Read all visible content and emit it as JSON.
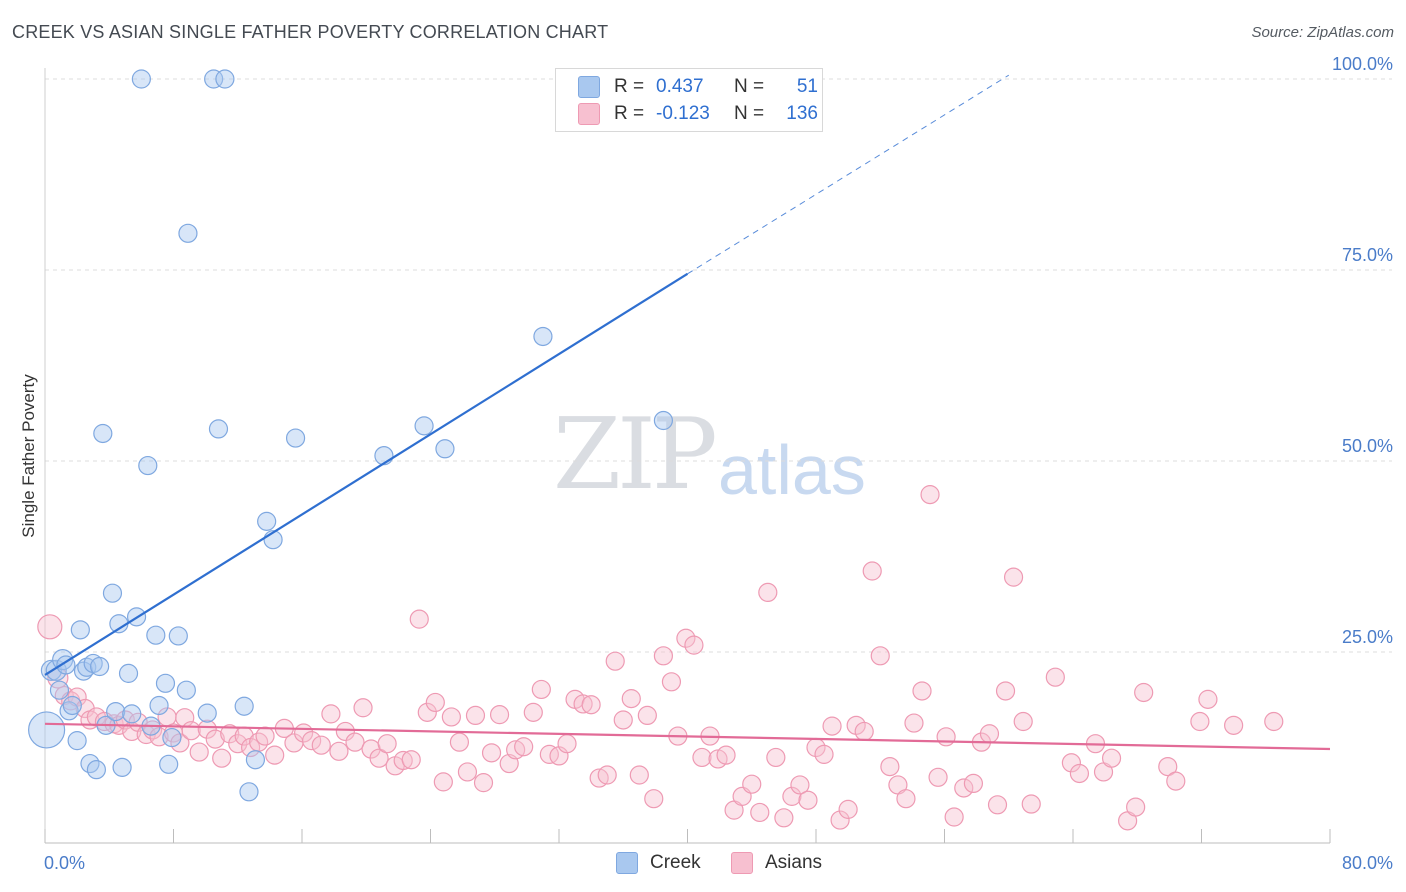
{
  "header": {
    "title": "CREEK VS ASIAN SINGLE FATHER POVERTY CORRELATION CHART",
    "source": "Source: ZipAtlas.com"
  },
  "watermark": {
    "part1": "ZIP",
    "part2": "atlas"
  },
  "legend": {
    "rows": [
      {
        "r_label": "R =",
        "r_value": "0.437",
        "n_label": "N =",
        "n_value": "51",
        "color": "#a9c8ef",
        "border": "#7fa8e0"
      },
      {
        "r_label": "R =",
        "r_value": "-0.123",
        "n_label": "N =",
        "n_value": "136",
        "color": "#f7c0d0",
        "border": "#ee9ab3"
      }
    ]
  },
  "bottom_legend": {
    "items": [
      {
        "label": "Creek",
        "color": "#a9c8ef",
        "border": "#7fa8e0"
      },
      {
        "label": "Asians",
        "color": "#f7c0d0",
        "border": "#ee9ab3"
      }
    ]
  },
  "chart_data": {
    "type": "scatter",
    "title": "CREEK VS ASIAN SINGLE FATHER POVERTY CORRELATION CHART",
    "xlabel": "",
    "ylabel": "Single Father Poverty",
    "xlim": [
      0,
      80
    ],
    "ylim": [
      0,
      100
    ],
    "x_tick_labels": {
      "left": "0.0%",
      "right": "80.0%"
    },
    "y_ticks": [
      25,
      50,
      75,
      100
    ],
    "y_tick_labels": [
      "25.0%",
      "50.0%",
      "75.0%",
      "100.0%"
    ],
    "series": [
      {
        "name": "Creek",
        "color": "#7fa8e0",
        "fill": "#a9c8ef",
        "line_color": "#2f6fd0",
        "trend": {
          "x0": 0,
          "y0": 22,
          "x1": 40,
          "y1": 74.5,
          "dash_x1": 60,
          "dash_y1": 100.5
        },
        "points": [
          [
            0.1,
            14.8,
            18
          ],
          [
            0.4,
            22.6,
            10
          ],
          [
            0.7,
            22.6,
            10
          ],
          [
            0.9,
            20.0,
            9
          ],
          [
            1.1,
            24.0,
            10
          ],
          [
            1.3,
            23.3,
            9
          ],
          [
            1.5,
            17.3,
            9
          ],
          [
            1.7,
            18.0,
            9
          ],
          [
            2.0,
            13.4,
            9
          ],
          [
            2.2,
            27.9,
            9
          ],
          [
            2.4,
            22.5,
            9
          ],
          [
            2.6,
            23.0,
            9
          ],
          [
            2.8,
            10.4,
            9
          ],
          [
            3.0,
            23.5,
            9
          ],
          [
            3.2,
            9.6,
            9
          ],
          [
            3.4,
            23.1,
            9
          ],
          [
            3.6,
            53.6,
            9
          ],
          [
            3.8,
            15.4,
            9
          ],
          [
            4.2,
            32.7,
            9
          ],
          [
            4.4,
            17.2,
            9
          ],
          [
            4.6,
            28.7,
            9
          ],
          [
            4.8,
            9.9,
            9
          ],
          [
            5.2,
            22.2,
            9
          ],
          [
            5.4,
            16.9,
            9
          ],
          [
            5.7,
            29.6,
            9
          ],
          [
            6.0,
            100.0,
            9
          ],
          [
            6.4,
            49.4,
            9
          ],
          [
            6.6,
            15.3,
            9
          ],
          [
            6.9,
            27.2,
            9
          ],
          [
            7.1,
            18.0,
            9
          ],
          [
            7.5,
            20.9,
            9
          ],
          [
            7.7,
            10.3,
            9
          ],
          [
            7.9,
            13.8,
            9
          ],
          [
            8.3,
            27.1,
            9
          ],
          [
            8.8,
            20.0,
            9
          ],
          [
            8.9,
            79.8,
            9
          ],
          [
            10.1,
            17.0,
            9
          ],
          [
            10.5,
            100.0,
            9
          ],
          [
            10.8,
            54.2,
            9
          ],
          [
            11.2,
            100.0,
            9
          ],
          [
            12.4,
            17.9,
            9
          ],
          [
            12.7,
            6.7,
            9
          ],
          [
            13.1,
            10.9,
            9
          ],
          [
            13.8,
            42.1,
            9
          ],
          [
            14.2,
            39.7,
            9
          ],
          [
            15.6,
            53.0,
            9
          ],
          [
            21.1,
            50.7,
            9
          ],
          [
            23.6,
            54.6,
            9
          ],
          [
            24.9,
            51.6,
            9
          ],
          [
            31.0,
            66.3,
            9
          ],
          [
            38.5,
            55.3,
            9
          ]
        ]
      },
      {
        "name": "Asians",
        "color": "#ee9ab3",
        "fill": "#f7c0d0",
        "line_color": "#e26b97",
        "trend": {
          "x0": 0,
          "y0": 15.6,
          "x1": 80,
          "y1": 12.3
        },
        "points": [
          [
            0.3,
            28.3,
            12
          ],
          [
            0.8,
            21.6,
            10
          ],
          [
            1.2,
            19.3,
            9
          ],
          [
            1.6,
            18.6,
            9
          ],
          [
            2.0,
            19.1,
            9
          ],
          [
            2.5,
            17.6,
            9
          ],
          [
            2.8,
            16.1,
            9
          ],
          [
            3.2,
            16.5,
            9
          ],
          [
            3.7,
            15.9,
            9
          ],
          [
            4.3,
            15.6,
            9
          ],
          [
            4.6,
            15.4,
            9
          ],
          [
            5.0,
            16.1,
            9
          ],
          [
            5.4,
            14.6,
            9
          ],
          [
            5.8,
            15.8,
            9
          ],
          [
            6.3,
            14.2,
            9
          ],
          [
            6.7,
            14.8,
            9
          ],
          [
            7.1,
            13.9,
            9
          ],
          [
            7.6,
            16.5,
            9
          ],
          [
            8.0,
            14.4,
            9
          ],
          [
            8.4,
            13.1,
            9
          ],
          [
            8.7,
            16.4,
            9
          ],
          [
            9.1,
            14.7,
            9
          ],
          [
            9.6,
            11.9,
            9
          ],
          [
            10.1,
            14.9,
            9
          ],
          [
            10.6,
            13.6,
            9
          ],
          [
            11.0,
            11.1,
            9
          ],
          [
            11.5,
            14.3,
            9
          ],
          [
            12.0,
            13.0,
            9
          ],
          [
            12.4,
            14.0,
            9
          ],
          [
            12.8,
            12.5,
            9
          ],
          [
            13.3,
            13.2,
            9
          ],
          [
            13.7,
            14.0,
            9
          ],
          [
            14.3,
            11.5,
            9
          ],
          [
            14.9,
            15.0,
            9
          ],
          [
            15.5,
            13.1,
            9
          ],
          [
            16.1,
            14.4,
            9
          ],
          [
            16.6,
            13.4,
            9
          ],
          [
            17.2,
            12.8,
            9
          ],
          [
            17.8,
            16.9,
            9
          ],
          [
            18.3,
            12.0,
            9
          ],
          [
            18.7,
            14.6,
            9
          ],
          [
            19.3,
            13.2,
            9
          ],
          [
            19.8,
            17.7,
            9
          ],
          [
            20.3,
            12.3,
            9
          ],
          [
            20.8,
            11.1,
            9
          ],
          [
            21.3,
            13.0,
            9
          ],
          [
            21.8,
            10.1,
            9
          ],
          [
            22.3,
            10.8,
            9
          ],
          [
            22.8,
            10.9,
            9
          ],
          [
            23.3,
            29.3,
            9
          ],
          [
            23.8,
            17.1,
            9
          ],
          [
            24.3,
            18.4,
            9
          ],
          [
            24.8,
            8.0,
            9
          ],
          [
            25.3,
            16.5,
            9
          ],
          [
            25.8,
            13.2,
            9
          ],
          [
            26.3,
            9.3,
            9
          ],
          [
            26.8,
            16.7,
            9
          ],
          [
            27.3,
            7.9,
            9
          ],
          [
            27.8,
            11.8,
            9
          ],
          [
            28.3,
            16.8,
            9
          ],
          [
            28.9,
            10.4,
            9
          ],
          [
            29.3,
            12.2,
            9
          ],
          [
            29.8,
            12.6,
            9
          ],
          [
            30.4,
            17.1,
            9
          ],
          [
            30.9,
            20.1,
            9
          ],
          [
            31.4,
            11.6,
            9
          ],
          [
            32.0,
            11.4,
            9
          ],
          [
            32.5,
            13.0,
            9
          ],
          [
            33.0,
            18.8,
            9
          ],
          [
            33.5,
            18.2,
            9
          ],
          [
            34.0,
            18.1,
            9
          ],
          [
            34.5,
            8.5,
            9
          ],
          [
            35.0,
            8.9,
            9
          ],
          [
            35.5,
            23.8,
            9
          ],
          [
            36.0,
            16.1,
            9
          ],
          [
            36.5,
            18.9,
            9
          ],
          [
            37.0,
            8.9,
            9
          ],
          [
            37.5,
            16.7,
            9
          ],
          [
            37.9,
            5.8,
            9
          ],
          [
            38.5,
            24.5,
            9
          ],
          [
            39.0,
            21.1,
            9
          ],
          [
            39.4,
            14.0,
            9
          ],
          [
            39.9,
            26.8,
            9
          ],
          [
            40.4,
            25.9,
            9
          ],
          [
            40.9,
            11.2,
            9
          ],
          [
            41.4,
            14.0,
            9
          ],
          [
            41.9,
            11.0,
            9
          ],
          [
            42.4,
            11.5,
            9
          ],
          [
            42.9,
            4.3,
            9
          ],
          [
            43.4,
            6.1,
            9
          ],
          [
            44.0,
            7.7,
            9
          ],
          [
            44.5,
            4.0,
            9
          ],
          [
            45.0,
            32.8,
            9
          ],
          [
            45.5,
            11.2,
            9
          ],
          [
            46.0,
            3.3,
            9
          ],
          [
            46.5,
            6.1,
            9
          ],
          [
            47.0,
            7.6,
            9
          ],
          [
            47.5,
            5.6,
            9
          ],
          [
            48.0,
            12.5,
            9
          ],
          [
            48.5,
            11.6,
            9
          ],
          [
            49.0,
            15.3,
            9
          ],
          [
            49.5,
            3.0,
            9
          ],
          [
            50.0,
            4.4,
            9
          ],
          [
            50.5,
            15.4,
            9
          ],
          [
            51.0,
            14.6,
            9
          ],
          [
            51.5,
            35.6,
            9
          ],
          [
            52.0,
            24.5,
            9
          ],
          [
            52.6,
            10.0,
            9
          ],
          [
            53.1,
            7.6,
            9
          ],
          [
            53.6,
            5.8,
            9
          ],
          [
            54.1,
            15.7,
            9
          ],
          [
            54.6,
            19.9,
            9
          ],
          [
            55.1,
            45.6,
            9
          ],
          [
            55.6,
            8.6,
            9
          ],
          [
            56.1,
            13.9,
            9
          ],
          [
            56.6,
            3.4,
            9
          ],
          [
            57.2,
            7.2,
            9
          ],
          [
            57.8,
            7.8,
            9
          ],
          [
            58.3,
            13.2,
            9
          ],
          [
            58.8,
            14.3,
            9
          ],
          [
            59.3,
            5.0,
            9
          ],
          [
            59.8,
            19.9,
            9
          ],
          [
            60.3,
            34.8,
            9
          ],
          [
            60.9,
            15.9,
            9
          ],
          [
            61.4,
            5.1,
            9
          ],
          [
            62.9,
            21.7,
            9
          ],
          [
            63.9,
            10.5,
            9
          ],
          [
            64.4,
            9.1,
            9
          ],
          [
            65.4,
            13.0,
            9
          ],
          [
            65.9,
            9.3,
            9
          ],
          [
            66.4,
            11.1,
            9
          ],
          [
            67.4,
            2.9,
            9
          ],
          [
            67.9,
            4.7,
            9
          ],
          [
            68.4,
            19.7,
            9
          ],
          [
            69.9,
            10.0,
            9
          ],
          [
            70.4,
            8.1,
            9
          ],
          [
            71.9,
            15.9,
            9
          ],
          [
            72.4,
            18.8,
            9
          ],
          [
            74.0,
            15.4,
            9
          ],
          [
            76.5,
            15.9,
            9
          ]
        ]
      }
    ]
  }
}
